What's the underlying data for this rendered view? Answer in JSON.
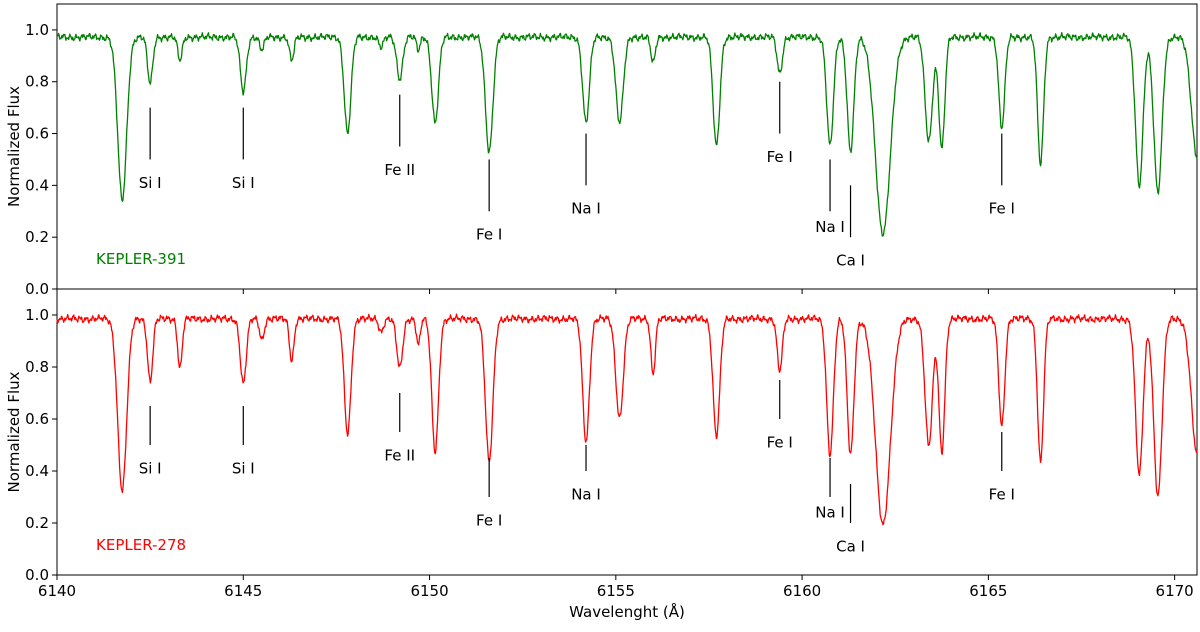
{
  "chart_data": {
    "type": "line",
    "xlabel": "Wavelenght (Å)",
    "ylabel": "Normalized Flux",
    "xlim": [
      6140,
      6170.6
    ],
    "ylim": [
      0.0,
      1.1
    ],
    "xticks": [
      6140,
      6145,
      6150,
      6155,
      6160,
      6165,
      6170
    ],
    "yticks": [
      0.0,
      0.2,
      0.4,
      0.6,
      0.8,
      1.0
    ],
    "panels": [
      {
        "star": "KEPLER-391",
        "color": "#008000",
        "continuum": 0.972,
        "lines": [
          {
            "x": 6141.75,
            "depth": 0.63,
            "width": 0.12
          },
          {
            "x": 6142.5,
            "depth": 0.18,
            "width": 0.07
          },
          {
            "x": 6143.3,
            "depth": 0.09,
            "width": 0.06
          },
          {
            "x": 6145.0,
            "depth": 0.21,
            "width": 0.08
          },
          {
            "x": 6145.5,
            "depth": 0.05,
            "width": 0.06
          },
          {
            "x": 6146.3,
            "depth": 0.09,
            "width": 0.06
          },
          {
            "x": 6147.8,
            "depth": 0.37,
            "width": 0.09
          },
          {
            "x": 6148.7,
            "depth": 0.04,
            "width": 0.06
          },
          {
            "x": 6149.2,
            "depth": 0.16,
            "width": 0.08
          },
          {
            "x": 6149.7,
            "depth": 0.05,
            "width": 0.05
          },
          {
            "x": 6150.15,
            "depth": 0.33,
            "width": 0.09
          },
          {
            "x": 6151.6,
            "depth": 0.44,
            "width": 0.1
          },
          {
            "x": 6154.2,
            "depth": 0.33,
            "width": 0.09
          },
          {
            "x": 6155.1,
            "depth": 0.33,
            "width": 0.1
          },
          {
            "x": 6156.0,
            "depth": 0.1,
            "width": 0.06
          },
          {
            "x": 6157.7,
            "depth": 0.42,
            "width": 0.09
          },
          {
            "x": 6159.4,
            "depth": 0.14,
            "width": 0.07
          },
          {
            "x": 6160.75,
            "depth": 0.42,
            "width": 0.09
          },
          {
            "x": 6161.3,
            "depth": 0.44,
            "width": 0.09
          },
          {
            "x": 6162.17,
            "depth": 0.76,
            "width": 0.2
          },
          {
            "x": 6163.4,
            "depth": 0.4,
            "width": 0.1
          },
          {
            "x": 6163.75,
            "depth": 0.43,
            "width": 0.08
          },
          {
            "x": 6165.36,
            "depth": 0.35,
            "width": 0.08
          },
          {
            "x": 6166.4,
            "depth": 0.49,
            "width": 0.08
          },
          {
            "x": 6169.05,
            "depth": 0.57,
            "width": 0.1
          },
          {
            "x": 6169.55,
            "depth": 0.6,
            "width": 0.11
          },
          {
            "x": 6170.6,
            "depth": 0.46,
            "width": 0.15
          }
        ],
        "annotations": [
          {
            "label": "Si I",
            "x": 6142.5,
            "bar": [
              0.5,
              0.7
            ],
            "text_y": 0.41
          },
          {
            "label": "Si I",
            "x": 6145.0,
            "bar": [
              0.5,
              0.7
            ],
            "text_y": 0.41
          },
          {
            "label": "Fe II",
            "x": 6149.2,
            "bar": [
              0.55,
              0.75
            ],
            "text_y": 0.46
          },
          {
            "label": "Fe I",
            "x": 6151.6,
            "bar": [
              0.3,
              0.5
            ],
            "text_y": 0.21
          },
          {
            "label": "Na I",
            "x": 6154.2,
            "bar": [
              0.4,
              0.6
            ],
            "text_y": 0.31
          },
          {
            "label": "Fe I",
            "x": 6159.4,
            "bar": [
              0.6,
              0.8
            ],
            "text_y": 0.51
          },
          {
            "label": "Na I",
            "x": 6160.75,
            "bar": [
              0.3,
              0.5
            ],
            "text_y": 0.24
          },
          {
            "label": "Ca I",
            "x": 6161.3,
            "bar": [
              0.2,
              0.4
            ],
            "text_y": 0.11
          },
          {
            "label": "Fe I",
            "x": 6165.36,
            "bar": [
              0.4,
              0.6
            ],
            "text_y": 0.31
          }
        ]
      },
      {
        "star": "KEPLER-278",
        "color": "#ff0000",
        "continuum": 0.985,
        "lines": [
          {
            "x": 6141.75,
            "depth": 0.66,
            "width": 0.12
          },
          {
            "x": 6142.5,
            "depth": 0.24,
            "width": 0.07
          },
          {
            "x": 6143.3,
            "depth": 0.19,
            "width": 0.06
          },
          {
            "x": 6145.0,
            "depth": 0.25,
            "width": 0.08
          },
          {
            "x": 6145.5,
            "depth": 0.08,
            "width": 0.06
          },
          {
            "x": 6146.3,
            "depth": 0.16,
            "width": 0.06
          },
          {
            "x": 6147.8,
            "depth": 0.44,
            "width": 0.09
          },
          {
            "x": 6148.7,
            "depth": 0.05,
            "width": 0.06
          },
          {
            "x": 6149.2,
            "depth": 0.19,
            "width": 0.08
          },
          {
            "x": 6149.7,
            "depth": 0.1,
            "width": 0.05
          },
          {
            "x": 6150.15,
            "depth": 0.51,
            "width": 0.09
          },
          {
            "x": 6151.6,
            "depth": 0.55,
            "width": 0.1
          },
          {
            "x": 6154.2,
            "depth": 0.47,
            "width": 0.09
          },
          {
            "x": 6155.1,
            "depth": 0.38,
            "width": 0.1
          },
          {
            "x": 6156.0,
            "depth": 0.21,
            "width": 0.06
          },
          {
            "x": 6157.7,
            "depth": 0.45,
            "width": 0.09
          },
          {
            "x": 6159.4,
            "depth": 0.2,
            "width": 0.07
          },
          {
            "x": 6160.75,
            "depth": 0.52,
            "width": 0.09
          },
          {
            "x": 6161.3,
            "depth": 0.52,
            "width": 0.09
          },
          {
            "x": 6162.17,
            "depth": 0.79,
            "width": 0.2
          },
          {
            "x": 6163.4,
            "depth": 0.49,
            "width": 0.1
          },
          {
            "x": 6163.75,
            "depth": 0.51,
            "width": 0.08
          },
          {
            "x": 6165.36,
            "depth": 0.41,
            "width": 0.08
          },
          {
            "x": 6166.4,
            "depth": 0.55,
            "width": 0.08
          },
          {
            "x": 6169.05,
            "depth": 0.6,
            "width": 0.1
          },
          {
            "x": 6169.55,
            "depth": 0.68,
            "width": 0.11
          },
          {
            "x": 6170.6,
            "depth": 0.52,
            "width": 0.15
          }
        ],
        "annotations": [
          {
            "label": "Si I",
            "x": 6142.5,
            "bar": [
              0.5,
              0.65
            ],
            "text_y": 0.41
          },
          {
            "label": "Si I",
            "x": 6145.0,
            "bar": [
              0.5,
              0.65
            ],
            "text_y": 0.41
          },
          {
            "label": "Fe II",
            "x": 6149.2,
            "bar": [
              0.55,
              0.7
            ],
            "text_y": 0.46
          },
          {
            "label": "Fe I",
            "x": 6151.6,
            "bar": [
              0.3,
              0.45
            ],
            "text_y": 0.21
          },
          {
            "label": "Na I",
            "x": 6154.2,
            "bar": [
              0.4,
              0.5
            ],
            "text_y": 0.31
          },
          {
            "label": "Fe I",
            "x": 6159.4,
            "bar": [
              0.6,
              0.75
            ],
            "text_y": 0.51
          },
          {
            "label": "Na I",
            "x": 6160.75,
            "bar": [
              0.3,
              0.45
            ],
            "text_y": 0.24
          },
          {
            "label": "Ca I",
            "x": 6161.3,
            "bar": [
              0.2,
              0.35
            ],
            "text_y": 0.11
          },
          {
            "label": "Fe I",
            "x": 6165.36,
            "bar": [
              0.4,
              0.55
            ],
            "text_y": 0.31
          }
        ]
      }
    ]
  }
}
